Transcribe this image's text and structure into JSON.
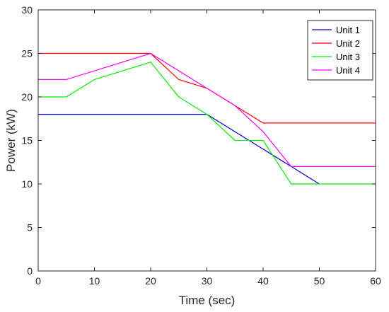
{
  "chart_data": {
    "type": "line",
    "xlabel": "Time (sec)",
    "ylabel": "Power (kW)",
    "xlim": [
      0,
      60
    ],
    "ylim": [
      0,
      30
    ],
    "xticks": [
      0,
      10,
      20,
      30,
      40,
      50,
      60
    ],
    "yticks": [
      0,
      5,
      10,
      15,
      20,
      25,
      30
    ],
    "grid": false,
    "legend_position": "top-right",
    "series": [
      {
        "name": "Unit 1",
        "color": "#0000cc",
        "x": [
          0,
          20,
          30,
          40,
          45,
          50
        ],
        "y": [
          18,
          18,
          18,
          14,
          12,
          10
        ]
      },
      {
        "name": "Unit 2",
        "color": "#ff0000",
        "x": [
          0,
          20,
          25,
          30,
          40,
          60
        ],
        "y": [
          25,
          25,
          22,
          21,
          17,
          17
        ]
      },
      {
        "name": "Unit 3",
        "color": "#00ee00",
        "x": [
          0,
          5,
          10,
          20,
          25,
          30,
          35,
          40,
          45,
          60
        ],
        "y": [
          20,
          20,
          22,
          24,
          20,
          18,
          15,
          15,
          10,
          10
        ]
      },
      {
        "name": "Unit 4",
        "color": "#ff00ff",
        "x": [
          0,
          5,
          20,
          30,
          35,
          40,
          45,
          60
        ],
        "y": [
          22,
          22,
          25,
          21,
          19,
          16,
          12,
          12
        ]
      }
    ]
  }
}
